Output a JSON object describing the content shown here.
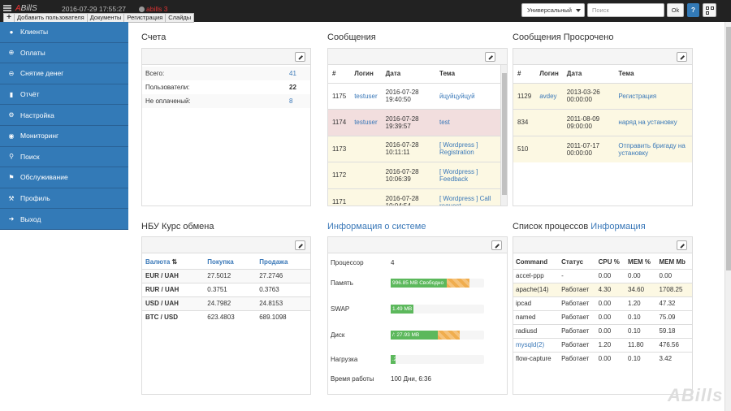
{
  "topbar": {
    "logo_a": "A",
    "logo_rest": "BillS",
    "datetime": "2016-07-29 17:55:27",
    "admin": "abills 3",
    "filter_value": "Универсальный",
    "search_placeholder": "Поиск",
    "ok_label": "Ok",
    "help_label": "?"
  },
  "quickbar": {
    "plus": "+",
    "items": [
      "Добавить пользователя",
      "Документы",
      "Регистрация",
      "Слайды"
    ]
  },
  "sidebar": {
    "items": [
      {
        "label": "Клиенты",
        "icon": "user-icon"
      },
      {
        "label": "Оплаты",
        "icon": "plus-circle-icon"
      },
      {
        "label": "Снятие денег",
        "icon": "minus-circle-icon"
      },
      {
        "label": "Отчёт",
        "icon": "report-icon"
      },
      {
        "label": "Настройка",
        "icon": "gear-icon"
      },
      {
        "label": "Мониторинг",
        "icon": "eye-icon"
      },
      {
        "label": "Поиск",
        "icon": "search-icon"
      },
      {
        "label": "Обслуживание",
        "icon": "flag-icon"
      },
      {
        "label": "Профиль",
        "icon": "wrench-icon"
      },
      {
        "label": "Выход",
        "icon": "exit-icon"
      }
    ]
  },
  "accounts": {
    "title": "Счета",
    "rows": [
      {
        "label": "Всего:",
        "value": "41"
      },
      {
        "label": "Пользователи:",
        "value": "22"
      },
      {
        "label": "Не оплаченый:",
        "value": "8"
      }
    ]
  },
  "messages": {
    "title": "Сообщения",
    "headers": [
      "#",
      "Логин",
      "Дата",
      "Тема"
    ],
    "rows": [
      {
        "id": "1175",
        "login": "testuser",
        "date": "2016-07-28 19:40:50",
        "subject": "йцуйцуйцуй"
      },
      {
        "id": "1174",
        "login": "testuser",
        "date": "2016-07-28 19:39:57",
        "subject": "test"
      },
      {
        "id": "1173",
        "login": "",
        "date": "2016-07-28 10:11:11",
        "subject": "[ Wordpress ] Registration"
      },
      {
        "id": "1172",
        "login": "",
        "date": "2016-07-28 10:06:39",
        "subject": "[ Wordpress ] Feedback"
      },
      {
        "id": "1171",
        "login": "",
        "date": "2016-07-28 10:04:54",
        "subject": "[ Wordpress ] Call request"
      }
    ]
  },
  "overdue": {
    "title": "Сообщения Просрочено",
    "headers": [
      "#",
      "Логин",
      "Дата",
      "Тема"
    ],
    "rows": [
      {
        "id": "1129",
        "login": "avdey",
        "date": "2013-03-26 00:00:00",
        "subject": "Регистрация"
      },
      {
        "id": "834",
        "login": "",
        "date": "2011-08-09 09:00:00",
        "subject": "наряд на установку"
      },
      {
        "id": "510",
        "login": "",
        "date": "2011-07-17 00:00:00",
        "subject": "Отправить бригаду на установку"
      }
    ]
  },
  "currency": {
    "title": "НБУ Курс обмена",
    "headers": [
      "Валюта",
      "Покупка",
      "Продажа"
    ],
    "rows": [
      {
        "pair": "EUR / UAH",
        "buy": "27.5012",
        "sell": "27.2746"
      },
      {
        "pair": "RUR / UAH",
        "buy": "0.3751",
        "sell": "0.3763"
      },
      {
        "pair": "USD / UAH",
        "buy": "24.7982",
        "sell": "24.8153"
      },
      {
        "pair": "BTC / USD",
        "buy": "623.4803",
        "sell": "689.1098"
      }
    ]
  },
  "sysinfo": {
    "title_a": "Информация",
    "title_b": "о системе",
    "cpu_label": "Процессор",
    "cpu_value": "4",
    "memory_label": "Память",
    "memory_text": "996.85 MB Свободно",
    "memory_used_pct": 60,
    "memory_cached_pct": 24,
    "swap_label": "SWAP",
    "swap_text": "1.49 MB",
    "swap_used_pct": 24,
    "disk_label": "Диск",
    "disk_text": "/: 27.93 MB",
    "disk_used_pct": 50,
    "disk_cached_pct": 24,
    "load_label": "Нагрузка",
    "load_text": ".25",
    "load_pct": 5,
    "uptime_label": "Время работы",
    "uptime_value": "100 Дни, 6:36"
  },
  "processes": {
    "title_a": "Список процессов",
    "title_b": "Информация",
    "headers": [
      "Command",
      "Статус",
      "CPU %",
      "MEM %",
      "MEM Mb"
    ],
    "rows": [
      {
        "cmd": "accel-ppp",
        "status": "-",
        "cpu": "0.00",
        "mem": "0.00",
        "memmb": "0.00",
        "link": false
      },
      {
        "cmd": "apache(14)",
        "status": "Работает",
        "cpu": "4.30",
        "mem": "34.60",
        "memmb": "1708.25",
        "link": false
      },
      {
        "cmd": "ipcad",
        "status": "Работает",
        "cpu": "0.00",
        "mem": "1.20",
        "memmb": "47.32",
        "link": false
      },
      {
        "cmd": "named",
        "status": "Работает",
        "cpu": "0.00",
        "mem": "0.10",
        "memmb": "75.09",
        "link": false
      },
      {
        "cmd": "radiusd",
        "status": "Работает",
        "cpu": "0.00",
        "mem": "0.10",
        "memmb": "59.18",
        "link": false
      },
      {
        "cmd": "mysqld(2)",
        "status": "Работает",
        "cpu": "1.20",
        "mem": "11.80",
        "memmb": "476.56",
        "link": true
      },
      {
        "cmd": "flow-capture",
        "status": "Работает",
        "cpu": "0.00",
        "mem": "0.10",
        "memmb": "3.42",
        "link": false
      }
    ]
  },
  "watermark": "ABills"
}
